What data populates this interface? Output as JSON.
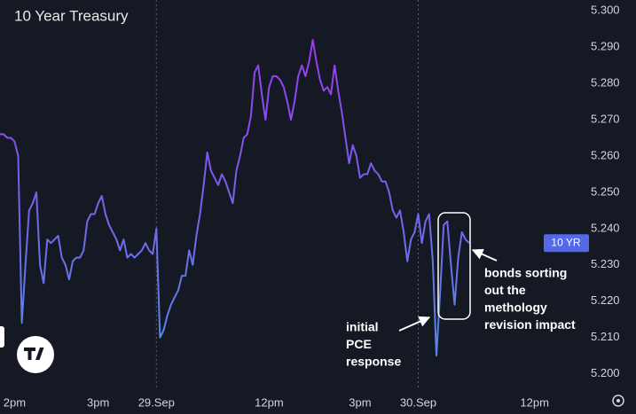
{
  "chart_data": {
    "type": "line",
    "title": "10 Year Treasury",
    "x": [
      0,
      1,
      2,
      3,
      4,
      5,
      6,
      7,
      8,
      9,
      10,
      11,
      12,
      13,
      14,
      15,
      16,
      17,
      18,
      19,
      20,
      21,
      22,
      23,
      24,
      25,
      26,
      27,
      28,
      29,
      30,
      31,
      32,
      33,
      34,
      35,
      36,
      37,
      38,
      39,
      40,
      41,
      42,
      43,
      44,
      45,
      46,
      47,
      48,
      49,
      50,
      51,
      52,
      53,
      54,
      55,
      56,
      57,
      58,
      59,
      60,
      61,
      62,
      63,
      64,
      65,
      66,
      67,
      68,
      69,
      70,
      71,
      72,
      73,
      74,
      75,
      76,
      77,
      78,
      79,
      80,
      81,
      82,
      83,
      84,
      85,
      86,
      87,
      88,
      89,
      90,
      91,
      92,
      93,
      94,
      95,
      96,
      97,
      98,
      99,
      100,
      101,
      102,
      103,
      104,
      105,
      106,
      107,
      108,
      109,
      110,
      111,
      112,
      113,
      114,
      115,
      116,
      117,
      118,
      119,
      120,
      121,
      122,
      123,
      124,
      125,
      126,
      127,
      128,
      129
    ],
    "series": [
      {
        "name": "10 YR",
        "gradient": [
          "#a52ef0",
          "#4a93e6"
        ],
        "badge_color": "#5468e8",
        "values": [
          5.266,
          5.266,
          5.265,
          5.265,
          5.264,
          5.26,
          5.214,
          5.23,
          5.245,
          5.247,
          5.25,
          5.23,
          5.225,
          5.237,
          5.236,
          5.237,
          5.238,
          5.232,
          5.23,
          5.226,
          5.231,
          5.232,
          5.232,
          5.234,
          5.242,
          5.244,
          5.244,
          5.247,
          5.249,
          5.244,
          5.241,
          5.239,
          5.237,
          5.234,
          5.237,
          5.232,
          5.233,
          5.232,
          5.233,
          5.234,
          5.236,
          5.234,
          5.233,
          5.24,
          5.21,
          5.212,
          5.216,
          5.219,
          5.221,
          5.223,
          5.227,
          5.227,
          5.234,
          5.23,
          5.238,
          5.244,
          5.252,
          5.261,
          5.256,
          5.254,
          5.252,
          5.255,
          5.253,
          5.25,
          5.247,
          5.256,
          5.26,
          5.265,
          5.266,
          5.271,
          5.283,
          5.285,
          5.277,
          5.27,
          5.279,
          5.282,
          5.282,
          5.281,
          5.279,
          5.275,
          5.27,
          5.275,
          5.282,
          5.285,
          5.282,
          5.286,
          5.292,
          5.286,
          5.281,
          5.278,
          5.279,
          5.277,
          5.285,
          5.278,
          5.272,
          5.265,
          5.258,
          5.263,
          5.26,
          5.254,
          5.255,
          5.255,
          5.258,
          5.256,
          5.255,
          5.253,
          5.253,
          5.25,
          5.245,
          5.243,
          5.245,
          5.239,
          5.231,
          5.237,
          5.239,
          5.244,
          5.236,
          5.242,
          5.244,
          5.231,
          5.205,
          5.222,
          5.241,
          5.242,
          5.23,
          5.219,
          5.232,
          5.239,
          5.237,
          5.236
        ]
      }
    ],
    "xlim": [
      0,
      160
    ],
    "xticks": [
      {
        "value": 4,
        "label": "2pm"
      },
      {
        "value": 27,
        "label": "3pm"
      },
      {
        "value": 43,
        "label": "29.Sep"
      },
      {
        "value": 74,
        "label": "12pm"
      },
      {
        "value": 99,
        "label": "3pm"
      },
      {
        "value": 115,
        "label": "30.Sep"
      },
      {
        "value": 147,
        "label": "12pm"
      }
    ],
    "ylim": [
      5.1955,
      5.303
    ],
    "yticks": [
      {
        "value": 5.2,
        "label": "5.200"
      },
      {
        "value": 5.21,
        "label": "5.210"
      },
      {
        "value": 5.22,
        "label": "5.220"
      },
      {
        "value": 5.23,
        "label": "5.230"
      },
      {
        "value": 5.24,
        "label": "5.240"
      },
      {
        "value": 5.25,
        "label": "5.250"
      },
      {
        "value": 5.26,
        "label": "5.260"
      },
      {
        "value": 5.27,
        "label": "5.270"
      },
      {
        "value": 5.28,
        "label": "5.280"
      },
      {
        "value": 5.29,
        "label": "5.290"
      },
      {
        "value": 5.3,
        "label": "5.300"
      }
    ],
    "annotations": [
      [
        "initial",
        "PCE",
        "response"
      ],
      [
        "bonds sorting",
        "out the",
        "methology",
        "revision impact"
      ]
    ]
  }
}
